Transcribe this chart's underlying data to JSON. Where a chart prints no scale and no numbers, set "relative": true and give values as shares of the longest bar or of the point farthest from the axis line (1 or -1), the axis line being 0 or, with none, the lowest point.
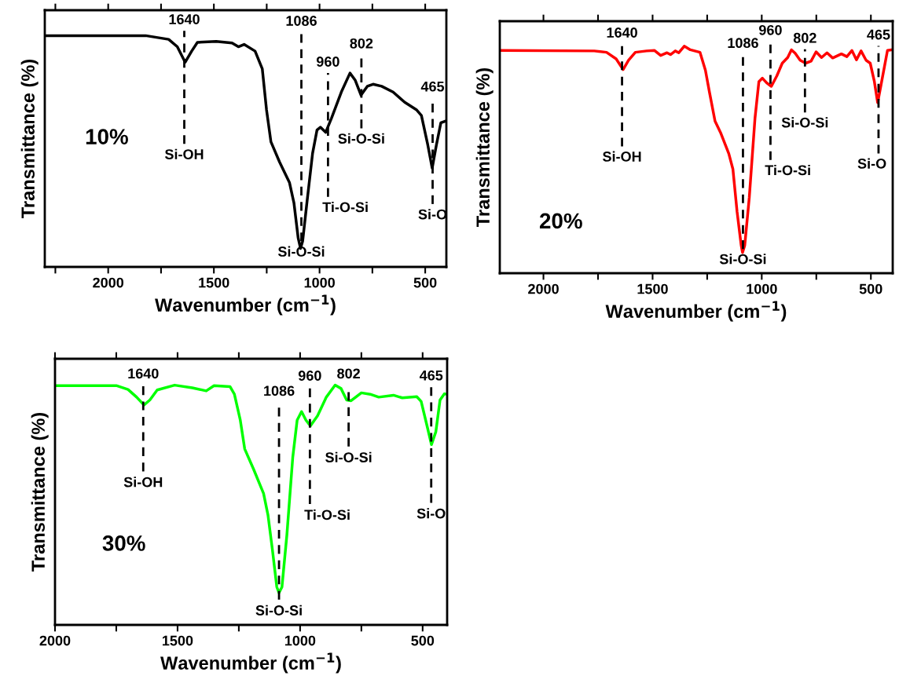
{
  "chart_data": [
    {
      "type": "line",
      "xlabel": "Wavenumber (cm$^{−1}$)",
      "ylabel": "Transmittance (%)",
      "relative": true,
      "tick_labels": "x",
      "xlim": [
        2300,
        400
      ],
      "xticks": [
        {
          "value": 2250,
          "label": null
        },
        2000,
        {
          "value": 1750,
          "label": null
        },
        1500,
        {
          "value": 1250,
          "label": null
        },
        1000,
        {
          "value": 750,
          "label": null
        },
        500
      ],
      "x": [
        2300,
        1823,
        1714,
        1673,
        1636,
        1605,
        1578,
        1489,
        1414,
        1384,
        1357,
        1305,
        1271,
        1251,
        1230,
        1189,
        1142,
        1121,
        1101,
        1090,
        1080,
        1060,
        1033,
        1012,
        996,
        971,
        944,
        897,
        856,
        831,
        804,
        774,
        747,
        706,
        652,
        597,
        542,
        518,
        488,
        467,
        447,
        426,
        406
      ],
      "series": [
        {
          "color": "#000000",
          "values": [
            1.0,
            1.0,
            0.984,
            0.952,
            0.885,
            0.933,
            0.971,
            0.975,
            0.968,
            0.952,
            0.962,
            0.933,
            0.857,
            0.68,
            0.541,
            0.453,
            0.364,
            0.276,
            0.124,
            0.08,
            0.111,
            0.276,
            0.491,
            0.592,
            0.604,
            0.582,
            0.642,
            0.756,
            0.838,
            0.807,
            0.743,
            0.781,
            0.79,
            0.781,
            0.756,
            0.712,
            0.68,
            0.655,
            0.528,
            0.427,
            0.528,
            0.623,
            0.63
          ]
        }
      ],
      "ref_lines": [
        {
          "axis": "x",
          "value": 1640,
          "label": "1640",
          "line_style": "dashed",
          "color": "#000000"
        },
        {
          "axis": "x",
          "value": 1086,
          "label": "1086",
          "line_style": "dashed",
          "color": "#000000"
        },
        {
          "axis": "x",
          "value": 960,
          "label": "960",
          "line_style": "dashed",
          "color": "#000000"
        },
        {
          "axis": "x",
          "value": 802,
          "label": "802",
          "line_style": "dashed",
          "color": "#000000"
        },
        {
          "axis": "x",
          "value": 465,
          "label": "465",
          "line_style": "dashed",
          "color": "#000000"
        }
      ],
      "annotations": [
        "10%",
        "Si-OH",
        "Si-O-Si",
        "Ti-O-Si",
        "Si-O-Si",
        "Si-O"
      ]
    },
    {
      "type": "line",
      "xlabel": "Wavenumber (cm$^{−1}$)",
      "ylabel": "Transmittance (%)",
      "relative": true,
      "tick_labels": "x",
      "xlim": [
        2200,
        400
      ],
      "xticks": [
        2000,
        {
          "value": 1750,
          "label": null
        },
        1500,
        {
          "value": 1250,
          "label": null
        },
        1000,
        {
          "value": 750,
          "label": null
        },
        500
      ],
      "x": [
        2199,
        1767,
        1711,
        1667,
        1635,
        1610,
        1579,
        1528,
        1491,
        1463,
        1434,
        1418,
        1396,
        1380,
        1355,
        1327,
        1283,
        1258,
        1239,
        1214,
        1189,
        1151,
        1132,
        1113,
        1094,
        1088,
        1078,
        1057,
        1031,
        1013,
        997,
        977,
        956,
        931,
        906,
        881,
        864,
        847,
        824,
        799,
        774,
        751,
        726,
        701,
        675,
        635,
        610,
        587,
        566,
        545,
        522,
        503,
        484,
        469,
        453,
        424,
        400
      ],
      "series": [
        {
          "color": "#ff0000",
          "values": [
            0.981,
            0.979,
            0.973,
            0.944,
            0.897,
            0.938,
            0.973,
            0.979,
            0.981,
            0.959,
            0.971,
            0.963,
            0.979,
            0.971,
            1.0,
            0.984,
            0.973,
            0.894,
            0.795,
            0.67,
            0.62,
            0.527,
            0.458,
            0.271,
            0.122,
            0.091,
            0.122,
            0.334,
            0.682,
            0.844,
            0.859,
            0.838,
            0.823,
            0.869,
            0.925,
            0.95,
            0.984,
            0.969,
            0.938,
            0.925,
            0.934,
            0.975,
            0.95,
            0.971,
            0.948,
            0.966,
            0.954,
            0.981,
            0.94,
            0.979,
            0.938,
            0.925,
            0.844,
            0.751,
            0.832,
            0.981,
            0.985
          ]
        }
      ],
      "ref_lines": [
        {
          "axis": "x",
          "value": 1640,
          "label": "1640",
          "line_style": "dashed",
          "color": "#000000"
        },
        {
          "axis": "x",
          "value": 1086,
          "label": "1086",
          "line_style": "dashed",
          "color": "#000000"
        },
        {
          "axis": "x",
          "value": 960,
          "label": "960",
          "line_style": "dashed",
          "color": "#000000"
        },
        {
          "axis": "x",
          "value": 802,
          "label": "802",
          "line_style": "dashed",
          "color": "#000000"
        },
        {
          "axis": "x",
          "value": 465,
          "label": "465",
          "line_style": "dashed",
          "color": "#000000"
        }
      ],
      "annotations": [
        "20%",
        "Si-OH",
        "Si-O-Si",
        "Ti-O-Si",
        "Si-O-Si",
        "Si-O"
      ]
    },
    {
      "type": "line",
      "xlabel": "Wavenumber (cm$^{−1}$)",
      "ylabel": "Transmittance (%)",
      "relative": true,
      "tick_labels": "x",
      "xlim": [
        2000,
        400
      ],
      "xticks": [
        2000,
        {
          "value": 1750,
          "label": null
        },
        1500,
        {
          "value": 1250,
          "label": null
        },
        1000,
        {
          "value": 750,
          "label": null
        },
        500
      ],
      "x": [
        2000,
        1750,
        1702,
        1667,
        1637,
        1613,
        1583,
        1512,
        1440,
        1383,
        1351,
        1286,
        1268,
        1244,
        1226,
        1190,
        1149,
        1131,
        1113,
        1095,
        1086,
        1074,
        1054,
        1030,
        1012,
        994,
        976,
        958,
        929,
        893,
        857,
        833,
        810,
        792,
        750,
        714,
        679,
        619,
        583,
        524,
        506,
        482,
        464,
        446,
        429,
        411,
        400
      ],
      "series": [
        {
          "color": "#00ff00",
          "values": [
            0.998,
            0.998,
            0.982,
            0.95,
            0.917,
            0.938,
            0.98,
            1.0,
            0.989,
            0.976,
            0.998,
            0.994,
            0.962,
            0.854,
            0.734,
            0.65,
            0.548,
            0.458,
            0.314,
            0.158,
            0.134,
            0.158,
            0.374,
            0.698,
            0.854,
            0.89,
            0.854,
            0.83,
            0.872,
            0.95,
            1.0,
            0.986,
            0.938,
            0.935,
            0.968,
            0.962,
            0.95,
            0.958,
            0.947,
            0.952,
            0.932,
            0.83,
            0.752,
            0.806,
            0.938,
            0.964,
            0.962
          ]
        }
      ],
      "ref_lines": [
        {
          "axis": "x",
          "value": 1640,
          "label": "1640",
          "line_style": "dashed",
          "color": "#000000"
        },
        {
          "axis": "x",
          "value": 1086,
          "label": "1086",
          "line_style": "dashed",
          "color": "#000000"
        },
        {
          "axis": "x",
          "value": 960,
          "label": "960",
          "line_style": "dashed",
          "color": "#000000"
        },
        {
          "axis": "x",
          "value": 802,
          "label": "802",
          "line_style": "dashed",
          "color": "#000000"
        },
        {
          "axis": "x",
          "value": 465,
          "label": "465",
          "line_style": "dashed",
          "color": "#000000"
        }
      ],
      "annotations": [
        "30%",
        "Si-OH",
        "Si-O-Si",
        "Ti-O-Si",
        "Si-O-Si",
        "Si-O"
      ]
    }
  ]
}
